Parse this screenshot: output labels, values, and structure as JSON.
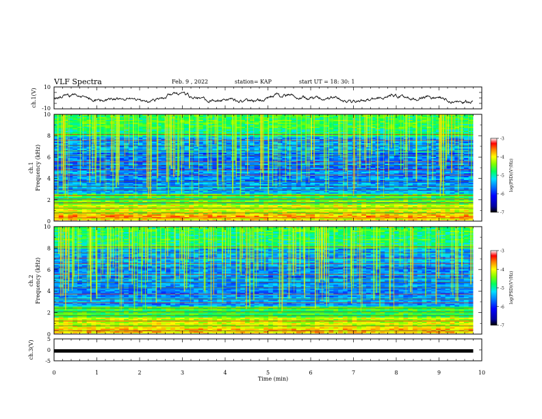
{
  "header": {
    "title": "VLF Spectra",
    "date": "Feb. 9 , 2022",
    "station": "station= KAP",
    "start": "start  UT =   18: 30: 1"
  },
  "chart_data": [
    {
      "type": "line",
      "name": "ch1-waveform",
      "ylabel": "ch.1(V)",
      "ylim": [
        -10,
        10
      ],
      "yticks": [
        "10",
        "-10"
      ],
      "xlim": [
        0,
        10
      ]
    },
    {
      "type": "heatmap",
      "name": "ch1-spectrogram",
      "ylabel_channel": "ch.1",
      "ylabel": "Frequency  (kHz)",
      "ylim": [
        0,
        10
      ],
      "yticks": [
        "0",
        "2",
        "4",
        "6",
        "8",
        "10"
      ],
      "xlim": [
        0,
        10
      ],
      "data_extent_x": [
        0,
        9.8
      ],
      "colorbar": {
        "label": "log(PSD)(V²/Hz)",
        "range": [
          -7,
          -3
        ],
        "ticks": [
          "-3",
          "-4",
          "-5",
          "-6",
          "-7"
        ]
      }
    },
    {
      "type": "heatmap",
      "name": "ch2-spectrogram",
      "ylabel_channel": "ch.2",
      "ylabel": "Frequency  (kHz)",
      "ylim": [
        0,
        10
      ],
      "yticks": [
        "0",
        "2",
        "4",
        "6",
        "8",
        "10"
      ],
      "xlim": [
        0,
        10
      ],
      "data_extent_x": [
        0,
        9.8
      ],
      "colorbar": {
        "label": "log(PSD)(V²/Hz)",
        "range": [
          -7,
          -3
        ],
        "ticks": [
          "-3",
          "-4",
          "-5",
          "-6",
          "-7"
        ]
      }
    },
    {
      "type": "line",
      "name": "ch3-waveform",
      "ylabel": "ch.3(V)",
      "ylim": [
        -5,
        5
      ],
      "yticks": [
        "5",
        "0",
        "-5"
      ],
      "xlim": [
        0,
        10
      ],
      "xlabel": "Time  (min)",
      "xticks": [
        "0",
        "1",
        "2",
        "3",
        "4",
        "5",
        "6",
        "7",
        "8",
        "9",
        "10"
      ],
      "constant_level": -0.5
    }
  ]
}
